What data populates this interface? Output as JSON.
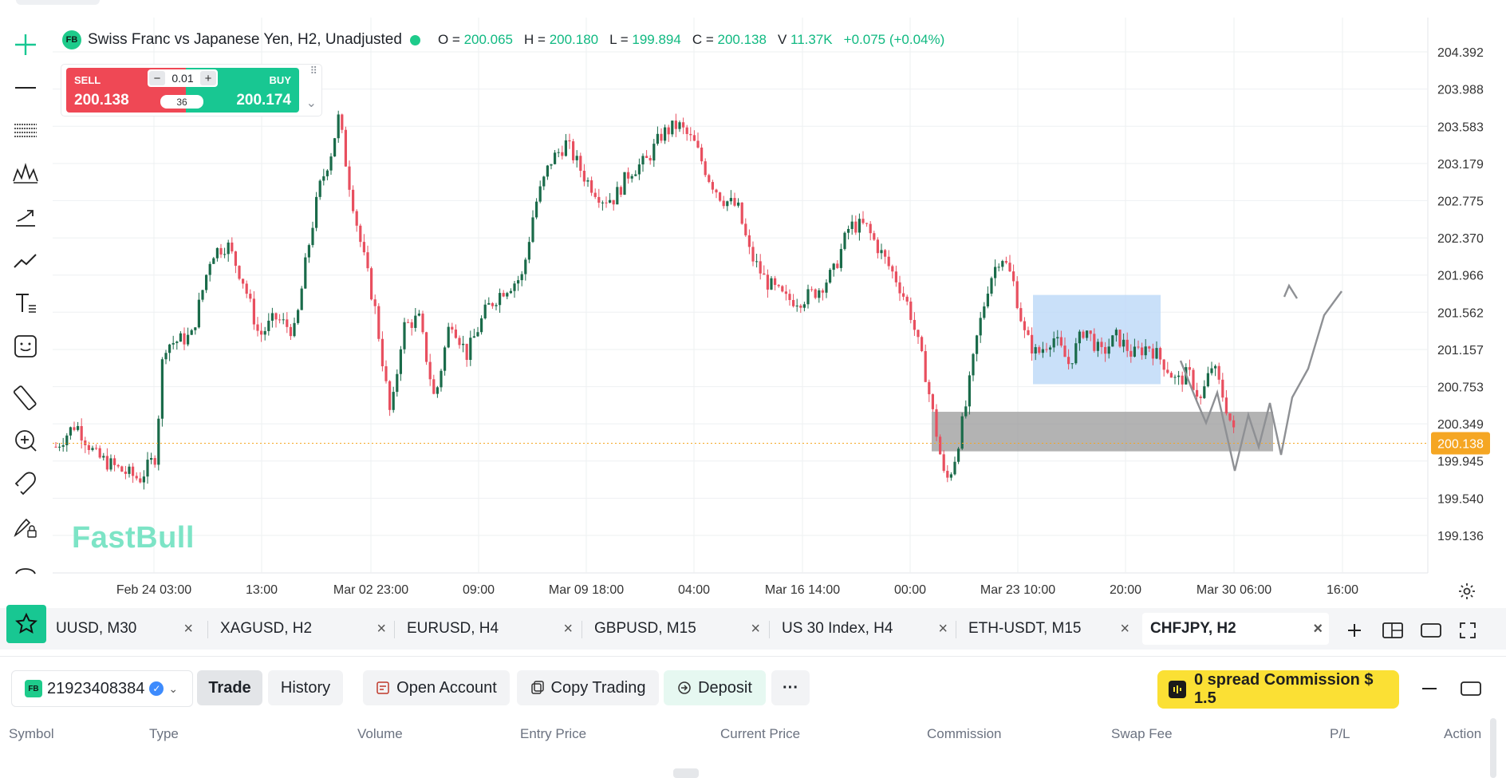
{
  "colors": {
    "up": "#1a6b4a",
    "down": "#e84f5f",
    "accent": "#18c792",
    "sell": "#ef4855",
    "last_price_tag": "#f5a623",
    "promo": "#fbe034"
  },
  "toolbar": {
    "tools": [
      "crosshair-icon",
      "horizontal-line-icon",
      "fib-lines-icon",
      "pattern-icon",
      "projection-icon",
      "trend-line-icon",
      "text-tool-icon",
      "emoji-icon",
      "ruler-icon",
      "zoom-in-icon",
      "magnet-icon",
      "lock-drawings-icon",
      "hide-drawings-icon"
    ]
  },
  "header": {
    "symbol_badge": "FB",
    "title": "Swiss Franc vs Japanese Yen, H2, Unadjusted",
    "ohlc": [
      {
        "k": "O =",
        "v": "200.065"
      },
      {
        "k": "H =",
        "v": "200.180"
      },
      {
        "k": "L =",
        "v": "199.894"
      },
      {
        "k": "C =",
        "v": "200.138"
      },
      {
        "k": "V",
        "v": "11.37K"
      },
      {
        "k": "",
        "v": "+0.075 (+0.04%)"
      }
    ]
  },
  "trade_widget": {
    "sell_label": "SELL",
    "sell_price": "200.138",
    "buy_label": "BUY",
    "buy_price": "200.174",
    "volume": "0.01",
    "minus": "−",
    "plus": "+",
    "spread": "36"
  },
  "chart": {
    "watermark": "FastBull",
    "price_labels": [
      "204.392",
      "203.988",
      "203.583",
      "203.179",
      "202.775",
      "202.370",
      "201.966",
      "201.562",
      "201.157",
      "200.753",
      "200.349",
      "199.945",
      "199.540",
      "199.136"
    ],
    "current_price": "200.138",
    "time_labels": [
      "Feb 24 03:00",
      "13:00",
      "Mar 02 23:00",
      "09:00",
      "Mar 09 18:00",
      "04:00",
      "Mar 16 14:00",
      "00:00",
      "Mar 23 10:00",
      "20:00",
      "Mar 30 06:00",
      "16:00"
    ],
    "ylim": [
      199.136,
      204.392
    ]
  },
  "tabs": [
    {
      "label": "UUSD, M30",
      "close": "×"
    },
    {
      "label": "XAGUSD, H2",
      "close": "×"
    },
    {
      "label": "EURUSD, H4",
      "close": "×"
    },
    {
      "label": "GBPUSD, M15",
      "close": "×"
    },
    {
      "label": "US 30 Index, H4",
      "close": "×"
    },
    {
      "label": "ETH-USDT, M15",
      "close": "×"
    },
    {
      "label": "CHFJPY, H2",
      "close": "×"
    }
  ],
  "panel": {
    "account_badge": "FB",
    "account_id": "21923408384",
    "verified": "✓",
    "trade": "Trade",
    "history": "History",
    "open_account": "Open Account",
    "copy_trading": "Copy Trading",
    "deposit": "Deposit",
    "more": "···",
    "promo": "0 spread Commission $ 1.5",
    "columns": [
      "Symbol",
      "Type",
      "Volume",
      "Entry Price",
      "Current Price",
      "Commission",
      "Swap Fee",
      "P/L",
      "Action"
    ]
  }
}
